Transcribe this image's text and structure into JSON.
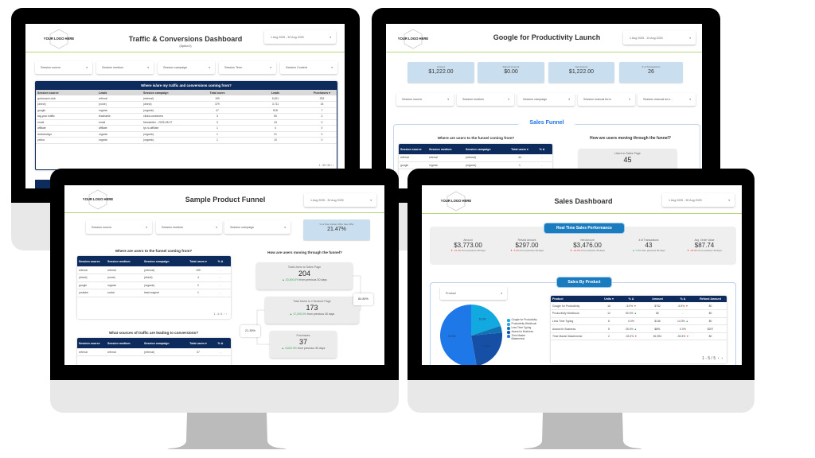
{
  "colors": {
    "accent_line": "#b5d67a",
    "table_header": "#0d2b5c",
    "pill_blue": "#1a7bbf",
    "kpi_blue": "#c9deee",
    "funnel_title": "#1a73e8",
    "up": "#34a853",
    "down": "#ea4335",
    "monitor_bezel": "#000000",
    "monitor_chin": "#e8e8e8",
    "monitor_stand": "#bbbbbb"
  },
  "icons": {
    "dropdown": "caret-down-icon",
    "logo": "hexagon-logo-icon",
    "pager_prev": "chevron-left-icon",
    "pager_next": "chevron-right-icon"
  },
  "traffic": {
    "logo": "YOUR LOGO HERE",
    "title": "Traffic & Conversions Dashboard",
    "subtitle": "(Option 2)",
    "date_range": "1 Aug 2025 - 30 Aug 2025",
    "filters": [
      "Session source",
      "Session medium",
      "Session campaign",
      "Session Term",
      "Session Content"
    ],
    "table": {
      "title": "Where is/are my traffic and conversions coming from?",
      "columns": [
        "Session source",
        "Leads",
        "Session campaign",
        "Total users",
        "Leads",
        "Purchases ▾"
      ],
      "rows": [
        [
          "gotocoach.club",
          "referral",
          "(referral)",
          "199",
          "5,521",
          "253"
        ],
        [
          "(direct)",
          "(none)",
          "(direct)",
          "379",
          "3,711",
          "15"
        ],
        [
          "google",
          "organic",
          "(organic)",
          "47",
          "818",
          "7"
        ],
        [
          "tag-your-traffic",
          "teachable",
          "clicks-customers",
          "3",
          "50",
          "2"
        ],
        [
          "email",
          "email",
          "Newsletter - 2025-08-07",
          "3",
          "43",
          "0"
        ],
        [
          "affiliate",
          "affiliate",
          "tyt-rc-affiliate",
          "1",
          "4",
          "0"
        ],
        [
          "duckduckgo",
          "organic",
          "(organic)",
          "1",
          "21",
          "0"
        ],
        [
          "yahoo",
          "organic",
          "(organic)",
          "1",
          "10",
          "0"
        ]
      ],
      "pager": "1 - 59 / 59"
    }
  },
  "launch": {
    "logo": "YOUR LOGO HERE",
    "title": "Google for Productivity Launch",
    "date_range": "1 Aug 2025 - 14 Aug 2025",
    "kpis": [
      {
        "label": "Amount",
        "value": "$1,222.00"
      },
      {
        "label": "Refund Amount",
        "value": "$0.00"
      },
      {
        "label": "Net Amount",
        "value": "$1,222.00"
      },
      {
        "label": "# of Transactions",
        "value": "26"
      }
    ],
    "filters": [
      "Session source",
      "Session medium",
      "Session campaign",
      "Session manual term",
      "Session manual ad c..."
    ],
    "section_title": "Sales Funnel",
    "source_heading": "Where are users to the funnel coming from?",
    "table": {
      "columns": [
        "Session source",
        "Session medium",
        "Session campaign",
        "Total users ▾",
        "% Δ"
      ],
      "rows": [
        [
          "referral",
          "referral",
          "(referral)",
          "44",
          "-"
        ],
        [
          "google",
          "organic",
          "(organic)",
          "1",
          "-"
        ]
      ]
    },
    "funnel_heading": "How are users moving through the funnel?",
    "card": {
      "label": "Users to Sales Page",
      "value": "45"
    }
  },
  "funnel": {
    "logo": "YOUR LOGO HERE",
    "title": "Sample Product Funnel",
    "date_range": "1 Aug 2025 - 30 Aug 2025",
    "filters": [
      "Session source",
      "Session medium",
      "Session campaign"
    ],
    "kpi": {
      "label": "% of Site Visitors Who See Offer",
      "value": "21.47%"
    },
    "source_heading": "Where are users to the funnel coming from?",
    "table1": {
      "columns": [
        "Session source",
        "Session medium",
        "Session campaign",
        "Total users ▾",
        "% Δ"
      ],
      "rows": [
        [
          "referral",
          "referral",
          "(referral)",
          "199",
          "-"
        ],
        [
          "(direct)",
          "(none)",
          "(direct)",
          "4",
          "-"
        ],
        [
          "google",
          "organic",
          "(organic)",
          "2",
          "-"
        ],
        [
          "youtube",
          "social",
          "lead-magnet",
          "1",
          "-"
        ]
      ],
      "pager": "1 - 4 / 4"
    },
    "conversions_heading": "What sources of traffic are leading to conversions?",
    "table2": {
      "columns": [
        "Session source",
        "Session medium",
        "Session campaign",
        "Total users ▾",
        "% Δ"
      ],
      "rows": [
        [
          "referral",
          "referral",
          "(referral)",
          "37",
          "-"
        ]
      ]
    },
    "funnel_heading": "How are users moving through the funnel?",
    "cards": [
      {
        "label": "Total Users to Sales Page",
        "value": "204",
        "change": "20,300.0%",
        "suffix": "from previous 30 days"
      },
      {
        "label": "Total Users to Checkout Page",
        "value": "173",
        "change": "17,200.0%",
        "suffix": "from previous 30 days"
      },
      {
        "label": "Purchases",
        "value": "37",
        "change": "3,600.0%",
        "suffix": "from previous 30 days"
      }
    ],
    "conversion_rates": [
      "84.80%",
      "21.39%"
    ]
  },
  "sales": {
    "logo": "YOUR LOGO HERE",
    "title": "Sales Dashboard",
    "date_range": "1 Aug 2025 - 30 Aug 2025",
    "performance_title": "Real Time Sales Performance",
    "kpis": [
      {
        "label": "Amount",
        "value": "$3,773.00",
        "change": "-21.4%",
        "trend": "down",
        "suffix": "from previous 30 days"
      },
      {
        "label": "Refund Amount",
        "value": "$297.00",
        "change": "-5.4%",
        "trend": "down",
        "suffix": "from previous 30 days"
      },
      {
        "label": "Net Amount",
        "value": "$3,476.00",
        "change": "-22.5%",
        "trend": "down",
        "suffix": "from previous 30 days"
      },
      {
        "label": "# of Transactions",
        "value": "43",
        "change": "7.5%",
        "trend": "up",
        "suffix": "from previous 30 days"
      },
      {
        "label": "Avg. Order Value",
        "value": "$87.74",
        "change": "-26.9%",
        "trend": "down",
        "suffix": "from previous 30 days"
      }
    ],
    "product_title": "Sales By Product",
    "product_filter": "Product",
    "chart_data": {
      "type": "pie",
      "categories": [
        "Google for Productivity",
        "Productivity Workbook",
        "Less Time Typing",
        "Asana for Business",
        "Time Master Mastermind"
      ],
      "values": [
        752,
        0,
        136,
        891,
        1994
      ],
      "labels": [
        "19.9%",
        "",
        "",
        "23.6%",
        "52.8%"
      ],
      "colors": [
        "#12a9e0",
        "#2ea3e6",
        "#0f73b6",
        "#1650a6",
        "#1f78e8"
      ],
      "legend": "right"
    },
    "table": {
      "columns": [
        "Product",
        "Units ▾",
        "% Δ",
        "Amount",
        "% Δ",
        "Refund Amount"
      ],
      "rows": [
        [
          "Google for Productivity",
          "16",
          "-5.9%",
          "$752",
          "-5.9%",
          "$0"
        ],
        [
          "Productivity Workbook",
          "12",
          "50.0%",
          "$0",
          "-",
          "$0"
        ],
        [
          "Less Time Typing",
          "8",
          "0.0%",
          "$136",
          "14.3%",
          "$0"
        ],
        [
          "Asana for Business",
          "5",
          "25.0%",
          "$891",
          "0.0%",
          "$297"
        ],
        [
          "Time Master Mastermind",
          "2",
          "-33.3%",
          "$1,994",
          "-33.3%",
          "$0"
        ]
      ],
      "pager": "1 - 5 / 5"
    }
  }
}
